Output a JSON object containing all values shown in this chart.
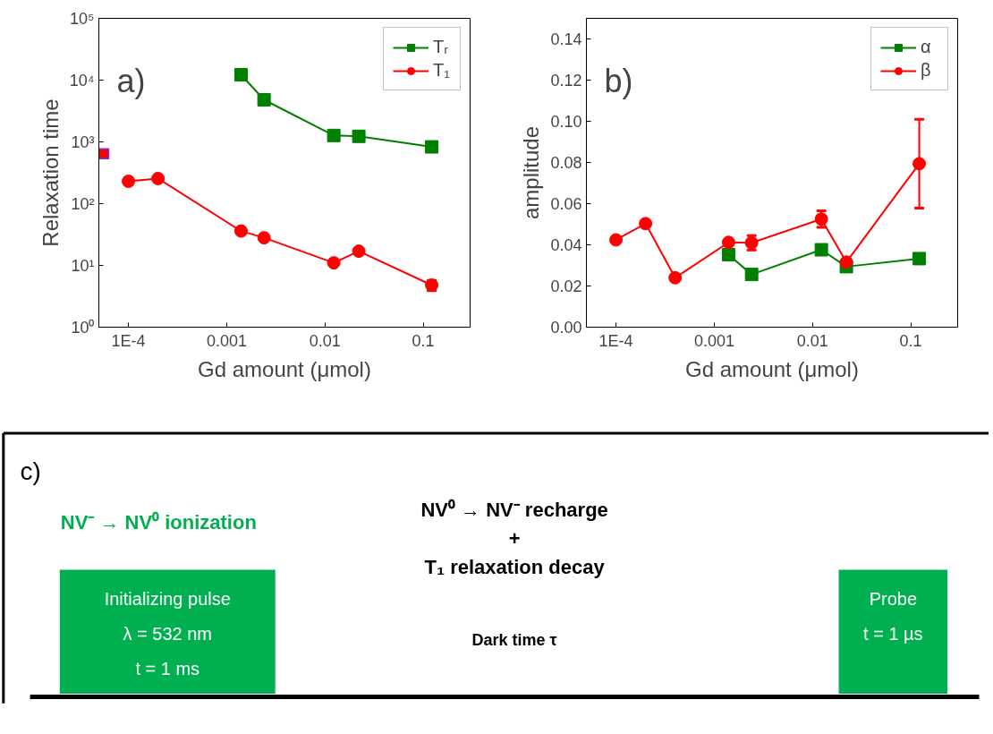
{
  "chart_data": [
    {
      "type": "line",
      "xlabel": "Gd amount (μmol)",
      "ylabel": "Relaxation time",
      "log": "xy",
      "xlim": [
        5e-05,
        0.3
      ],
      "ylim": [
        1,
        100000
      ],
      "xticks": [
        {
          "value": 0.0001,
          "label": "1E-4"
        },
        0.001,
        0.01,
        0.1
      ],
      "yticks": [
        {
          "value": 1,
          "label": "10⁰"
        },
        {
          "value": 10,
          "label": "10¹"
        },
        {
          "value": 100,
          "label": "10²"
        },
        {
          "value": 1000,
          "label": "10³"
        },
        {
          "value": 10000,
          "label": "10⁴"
        },
        {
          "value": 100000,
          "label": "10⁵"
        }
      ],
      "grid": false,
      "legend": "top right",
      "line_style": "solid",
      "annotations": [
        "a)"
      ],
      "series": [
        {
          "name": "Tᵣ",
          "color": "#008000",
          "marker": "square",
          "x": [
            0.0014,
            0.0024,
            0.0123,
            0.0221,
            0.122
          ],
          "values": [
            12200,
            4800,
            1270,
            1230,
            830
          ]
        },
        {
          "name": "T₁",
          "color": "#ff0000",
          "marker": "circle",
          "x": [
            0.0001,
            0.0002,
            0.0014,
            0.0024,
            0.0123,
            0.0221,
            0.122
          ],
          "values": [
            230,
            255,
            36,
            28,
            11,
            17,
            4.8
          ],
          "errors": [
            null,
            null,
            null,
            null,
            null,
            null,
            0.9
          ]
        },
        {
          "type": "scatter",
          "color": "#ff0000",
          "marker": "square",
          "x": [
            5e-05
          ],
          "values": [
            640
          ]
        }
      ]
    },
    {
      "type": "line",
      "xlabel": "Gd amount (μmol)",
      "ylabel": "amplitude",
      "log": "x",
      "xlim": [
        5e-05,
        0.3
      ],
      "ylim": [
        0,
        0.15
      ],
      "xticks": [
        {
          "value": 0.0001,
          "label": "1E-4"
        },
        0.001,
        0.01,
        0.1
      ],
      "yticks": [
        {
          "value": 0,
          "label": "0.00"
        },
        {
          "value": 0.02,
          "label": "0.02"
        },
        {
          "value": 0.04,
          "label": "0.04"
        },
        {
          "value": 0.06,
          "label": "0.06"
        },
        {
          "value": 0.08,
          "label": "0.08"
        },
        {
          "value": 0.1,
          "label": "0.10"
        },
        {
          "value": 0.12,
          "label": "0.12"
        },
        {
          "value": 0.14,
          "label": "0.14"
        }
      ],
      "grid": false,
      "legend": "top right",
      "line_style": "solid",
      "annotations": [
        "b)"
      ],
      "series": [
        {
          "name": "α",
          "color": "#008000",
          "marker": "square",
          "x": [
            0.0014,
            0.0024,
            0.0123,
            0.0221,
            0.122
          ],
          "values": [
            0.0352,
            0.0256,
            0.0376,
            0.0294,
            0.0333
          ]
        },
        {
          "name": "β",
          "color": "#ff0000",
          "marker": "circle",
          "x": [
            0.0001,
            0.0002,
            0.0004,
            0.0014,
            0.0024,
            0.0123,
            0.0221,
            0.122
          ],
          "values": [
            0.0424,
            0.0503,
            0.024,
            0.0412,
            0.041,
            0.0525,
            0.0316,
            0.0794
          ],
          "errors": [
            null,
            null,
            null,
            null,
            0.0035,
            0.004,
            null,
            0.0216
          ]
        }
      ]
    },
    {
      "type": "other",
      "annotations": [
        "c)",
        "NV⁻ → NV⁰ ionization",
        "NV⁰ → NV⁻ recharge",
        "+",
        "T₁ relaxation decay",
        "Initializing pulse",
        "λ = 532 nm",
        "t = 1 ms",
        "Dark time τ",
        "Probe",
        "t = 1 µs"
      ]
    }
  ]
}
